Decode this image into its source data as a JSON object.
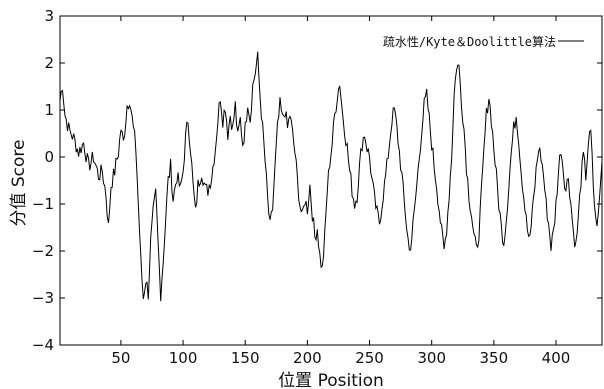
{
  "chart_data": {
    "type": "line",
    "title": "",
    "xlabel": "位置 Position",
    "ylabel": "分值 Score",
    "xlim": [
      1,
      437
    ],
    "ylim": [
      -4,
      3
    ],
    "xticks": [
      50,
      100,
      150,
      200,
      250,
      300,
      350,
      400
    ],
    "yticks": [
      -4,
      -3,
      -2,
      -1,
      0,
      1,
      2,
      3
    ],
    "grid": false,
    "legend_position": "top-right",
    "series": [
      {
        "name": "疏水性/Kyte＆Doolittle算法",
        "color": "#000000",
        "keypoints": [
          [
            1,
            1.2
          ],
          [
            3,
            1.55
          ],
          [
            5,
            0.9
          ],
          [
            8,
            0.6
          ],
          [
            12,
            0.4
          ],
          [
            16,
            0.1
          ],
          [
            20,
            0.3
          ],
          [
            24,
            -0.2
          ],
          [
            28,
            0.0
          ],
          [
            32,
            -0.4
          ],
          [
            35,
            -0.3
          ],
          [
            38,
            -0.8
          ],
          [
            40,
            -1.5
          ],
          [
            42,
            -0.6
          ],
          [
            45,
            -0.3
          ],
          [
            48,
            0.1
          ],
          [
            50,
            0.6
          ],
          [
            52,
            0.3
          ],
          [
            55,
            1.1
          ],
          [
            57,
            1.25
          ],
          [
            60,
            0.6
          ],
          [
            62,
            0.2
          ],
          [
            64,
            -1.0
          ],
          [
            66,
            -2.2
          ],
          [
            68,
            -3.0
          ],
          [
            70,
            -2.6
          ],
          [
            72,
            -2.9
          ],
          [
            74,
            -1.8
          ],
          [
            76,
            -1.2
          ],
          [
            78,
            -0.8
          ],
          [
            80,
            -1.9
          ],
          [
            82,
            -2.9
          ],
          [
            84,
            -2.2
          ],
          [
            86,
            -1.3
          ],
          [
            88,
            -0.5
          ],
          [
            90,
            -0.2
          ],
          [
            92,
            -0.9
          ],
          [
            95,
            -0.4
          ],
          [
            98,
            -0.7
          ],
          [
            100,
            -0.3
          ],
          [
            102,
            0.4
          ],
          [
            104,
            0.8
          ],
          [
            106,
            0.2
          ],
          [
            108,
            -0.6
          ],
          [
            110,
            -1.2
          ],
          [
            112,
            -0.6
          ],
          [
            115,
            -0.3
          ],
          [
            118,
            -0.7
          ],
          [
            120,
            -0.7
          ],
          [
            123,
            -0.4
          ],
          [
            126,
            0.2
          ],
          [
            128,
            0.8
          ],
          [
            130,
            1.3
          ],
          [
            132,
            0.8
          ],
          [
            134,
            1.1
          ],
          [
            136,
            0.5
          ],
          [
            138,
            0.9
          ],
          [
            140,
            0.6
          ],
          [
            142,
            1.1
          ],
          [
            144,
            0.4
          ],
          [
            146,
            0.8
          ],
          [
            148,
            0.3
          ],
          [
            150,
            0.6
          ],
          [
            152,
            1.2
          ],
          [
            154,
            0.8
          ],
          [
            156,
            1.5
          ],
          [
            158,
            1.8
          ],
          [
            160,
            2.1
          ],
          [
            162,
            1.3
          ],
          [
            164,
            0.6
          ],
          [
            166,
            -0.1
          ],
          [
            168,
            -0.9
          ],
          [
            170,
            -1.5
          ],
          [
            172,
            -1.1
          ],
          [
            174,
            -0.2
          ],
          [
            176,
            0.6
          ],
          [
            178,
            1.1
          ],
          [
            180,
            0.8
          ],
          [
            182,
            1.0
          ],
          [
            184,
            0.6
          ],
          [
            186,
            0.9
          ],
          [
            188,
            0.5
          ],
          [
            190,
            0.1
          ],
          [
            192,
            -0.5
          ],
          [
            194,
            -1.0
          ],
          [
            196,
            -1.3
          ],
          [
            198,
            -0.9
          ],
          [
            200,
            -1.1
          ],
          [
            202,
            -0.6
          ],
          [
            204,
            -1.2
          ],
          [
            206,
            -1.7
          ],
          [
            208,
            -1.5
          ],
          [
            210,
            -2.1
          ],
          [
            212,
            -2.4
          ],
          [
            214,
            -1.7
          ],
          [
            216,
            -0.7
          ],
          [
            218,
            -0.1
          ],
          [
            220,
            0.3
          ],
          [
            222,
            0.9
          ],
          [
            224,
            1.3
          ],
          [
            226,
            1.6
          ],
          [
            228,
            1.0
          ],
          [
            230,
            0.6
          ],
          [
            232,
            0.2
          ],
          [
            234,
            -0.3
          ],
          [
            236,
            -0.7
          ],
          [
            238,
            -1.0
          ],
          [
            240,
            -0.8
          ],
          [
            242,
            -0.2
          ],
          [
            244,
            0.3
          ],
          [
            246,
            0.5
          ],
          [
            248,
            0.2
          ],
          [
            250,
            0.0
          ],
          [
            252,
            -0.5
          ],
          [
            254,
            -0.9
          ],
          [
            256,
            -1.2
          ],
          [
            258,
            -1.4
          ],
          [
            260,
            -1.0
          ],
          [
            262,
            -0.6
          ],
          [
            264,
            -0.2
          ],
          [
            266,
            0.3
          ],
          [
            268,
            0.8
          ],
          [
            270,
            1.0
          ],
          [
            272,
            0.6
          ],
          [
            274,
            0.1
          ],
          [
            276,
            -0.4
          ],
          [
            278,
            -1.0
          ],
          [
            280,
            -1.5
          ],
          [
            282,
            -2.0
          ],
          [
            284,
            -1.7
          ],
          [
            286,
            -1.2
          ],
          [
            288,
            -0.6
          ],
          [
            290,
            0.0
          ],
          [
            292,
            0.6
          ],
          [
            294,
            1.1
          ],
          [
            296,
            1.3
          ],
          [
            298,
            0.8
          ],
          [
            300,
            0.3
          ],
          [
            302,
            -0.2
          ],
          [
            304,
            -0.6
          ],
          [
            306,
            -1.1
          ],
          [
            308,
            -1.6
          ],
          [
            310,
            -2.0
          ],
          [
            312,
            -1.5
          ],
          [
            314,
            -0.8
          ],
          [
            316,
            0.0
          ],
          [
            318,
            1.3
          ],
          [
            320,
            1.95
          ],
          [
            322,
            1.9
          ],
          [
            324,
            1.2
          ],
          [
            326,
            0.6
          ],
          [
            328,
            -0.2
          ],
          [
            330,
            -0.8
          ],
          [
            332,
            -1.2
          ],
          [
            334,
            -1.7
          ],
          [
            336,
            -2.0
          ],
          [
            338,
            -1.6
          ],
          [
            340,
            -0.8
          ],
          [
            342,
            0.1
          ],
          [
            344,
            0.9
          ],
          [
            346,
            1.3
          ],
          [
            348,
            0.8
          ],
          [
            350,
            0.2
          ],
          [
            352,
            -0.4
          ],
          [
            354,
            -1.0
          ],
          [
            356,
            -1.5
          ],
          [
            358,
            -1.8
          ],
          [
            360,
            -1.3
          ],
          [
            362,
            -0.6
          ],
          [
            364,
            0.1
          ],
          [
            366,
            0.6
          ],
          [
            368,
            0.9
          ],
          [
            370,
            0.4
          ],
          [
            372,
            -0.3
          ],
          [
            374,
            -0.8
          ],
          [
            376,
            -1.2
          ],
          [
            378,
            -1.8
          ],
          [
            380,
            -1.5
          ],
          [
            382,
            -0.9
          ],
          [
            384,
            -0.3
          ],
          [
            386,
            0.2
          ],
          [
            388,
            0.0
          ],
          [
            390,
            -0.4
          ],
          [
            392,
            -1.0
          ],
          [
            394,
            -1.4
          ],
          [
            396,
            -1.9
          ],
          [
            398,
            -1.6
          ],
          [
            400,
            -1.0
          ],
          [
            402,
            -0.3
          ],
          [
            404,
            0.2
          ],
          [
            406,
            -0.3
          ],
          [
            408,
            -0.7
          ],
          [
            410,
            -0.4
          ],
          [
            412,
            -1.0
          ],
          [
            414,
            -1.6
          ],
          [
            416,
            -1.9
          ],
          [
            418,
            -1.3
          ],
          [
            420,
            -0.5
          ],
          [
            422,
            0.0
          ],
          [
            424,
            -0.4
          ],
          [
            426,
            0.3
          ],
          [
            428,
            0.5
          ],
          [
            430,
            -0.6
          ],
          [
            432,
            -1.4
          ],
          [
            434,
            -1.3
          ],
          [
            436,
            -0.5
          ],
          [
            437,
            -0.1
          ]
        ]
      }
    ]
  }
}
